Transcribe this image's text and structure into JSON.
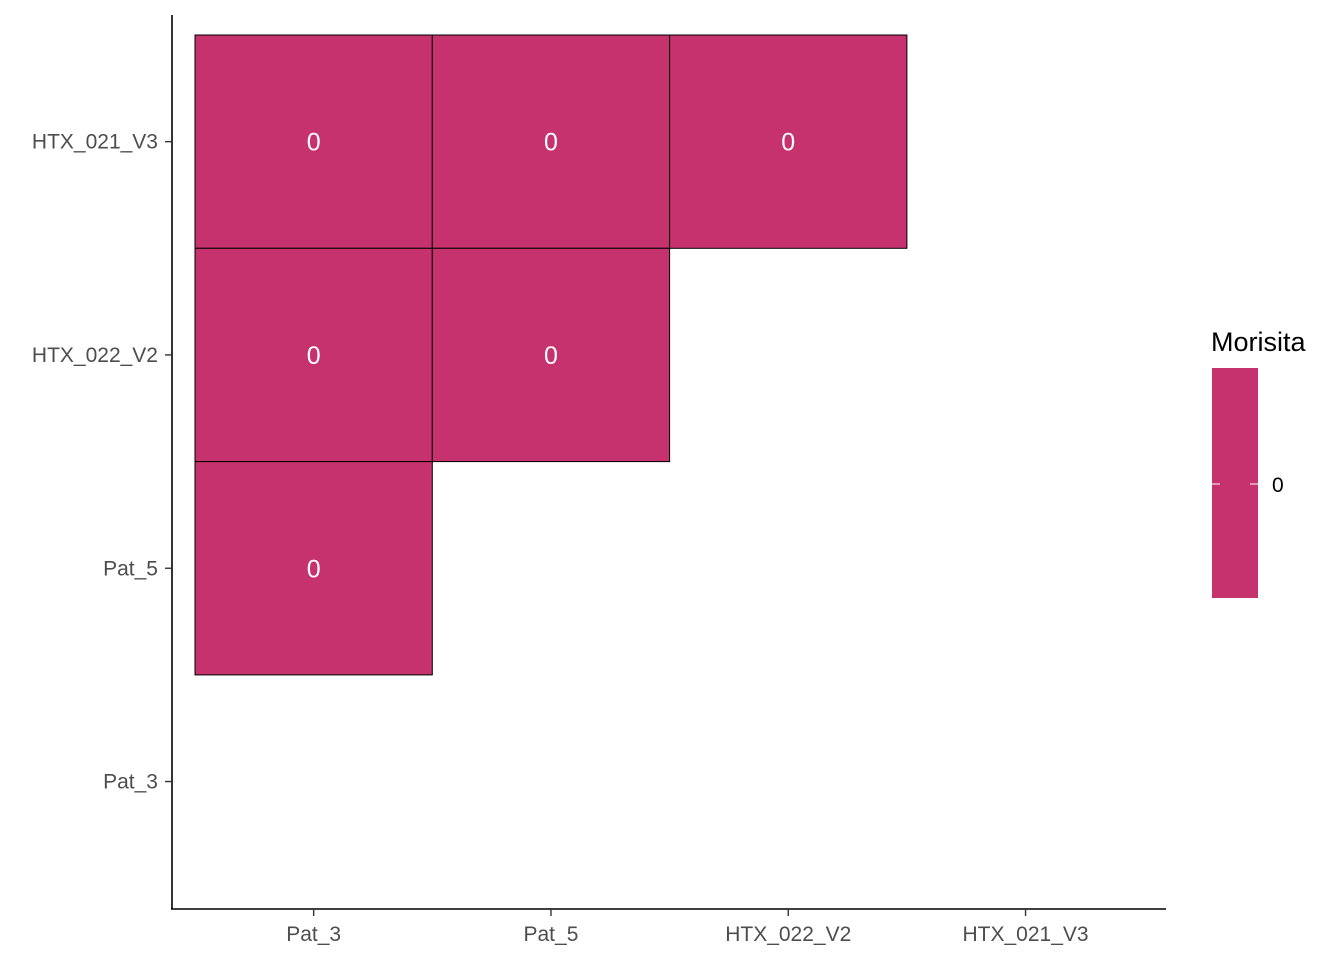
{
  "chart_data": {
    "type": "heatmap",
    "x_categories": [
      "Pat_3",
      "Pat_5",
      "HTX_022_V2",
      "HTX_021_V3"
    ],
    "y_categories": [
      "Pat_3",
      "Pat_5",
      "HTX_022_V2",
      "HTX_021_V3"
    ],
    "cells": [
      {
        "x": "Pat_3",
        "y": "HTX_021_V3",
        "value": 0,
        "label": "0"
      },
      {
        "x": "Pat_5",
        "y": "HTX_021_V3",
        "value": 0,
        "label": "0"
      },
      {
        "x": "HTX_022_V2",
        "y": "HTX_021_V3",
        "value": 0,
        "label": "0"
      },
      {
        "x": "Pat_3",
        "y": "HTX_022_V2",
        "value": 0,
        "label": "0"
      },
      {
        "x": "Pat_5",
        "y": "HTX_022_V2",
        "value": 0,
        "label": "0"
      },
      {
        "x": "Pat_3",
        "y": "Pat_5",
        "value": 0,
        "label": "0"
      }
    ],
    "fill_color": "#c5326d",
    "legend": {
      "title": "Morisita",
      "labels": [
        "0"
      ],
      "placement": "right"
    },
    "grid": false
  }
}
